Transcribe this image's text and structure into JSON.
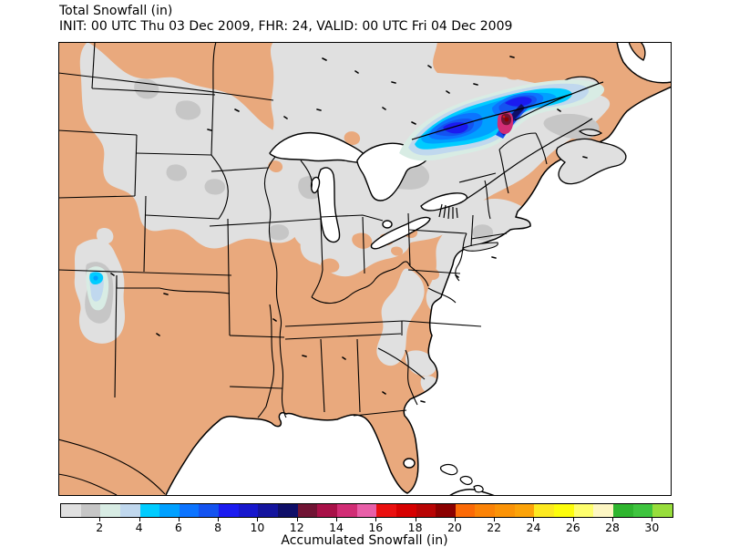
{
  "header": {
    "title": "Total Snowfall (in)",
    "subtitle": "INIT: 00 UTC Thu 03 Dec 2009, FHR: 24, VALID: 00 UTC Fri 04 Dec 2009"
  },
  "colorbar": {
    "label": "Accumulated Snowfall (in)",
    "units": "inches",
    "tick_values": [
      2,
      4,
      6,
      8,
      10,
      12,
      14,
      16,
      18,
      20,
      22,
      24,
      26,
      28,
      30
    ],
    "scale_min": 0,
    "scale_max": 31,
    "segment_colors": [
      "#e0e0e0",
      "#c6c6c6",
      "#d8ece4",
      "#c0d8ee",
      "#00ccff",
      "#00a0ff",
      "#0c74ff",
      "#1453f0",
      "#1b1bf0",
      "#1717cd",
      "#14149e",
      "#0f0f68",
      "#701434",
      "#a81148",
      "#d12d75",
      "#e85fa8",
      "#ea1010",
      "#d60000",
      "#b80404",
      "#8b0000",
      "#fb6a07",
      "#fb8307",
      "#fb9307",
      "#fca309",
      "#fde920",
      "#fdfd0c",
      "#fefe6e",
      "#fdf6c3",
      "#2fb52f",
      "#3fc43f",
      "#97dd3c"
    ]
  },
  "map": {
    "land_color": "#e9a97d",
    "water_color": "#ffffff",
    "frame_color": "#000000",
    "region": "Central and Eastern United States, Great Lakes, Southern Canada, Atlantic Coast",
    "snow_features": [
      {
        "region": "Southern Ontario / Quebec, NE of Lake Huron along the St. Lawrence",
        "peak_value_in": "18-20",
        "description": "elongated heavy-snow band, core 10-16 in with small 18-20 in maximum"
      },
      {
        "region": "Colorado Rockies",
        "peak_value_in": "5-6",
        "description": "small terrain-locked maximum"
      },
      {
        "region": "Northern Plains, Upper Midwest, Appalachians, New England and offshore Atlantic",
        "peak_value_in": "1-2",
        "description": "broad light accumulation under 2 in"
      }
    ]
  },
  "chart_data": {
    "type": "heatmap",
    "title": "Total Snowfall (in)",
    "legend_ticks": [
      2,
      4,
      6,
      8,
      10,
      12,
      14,
      16,
      18,
      20,
      22,
      24,
      26,
      28,
      30
    ],
    "legend_label": "Accumulated Snowfall (in)",
    "value_range_in": [
      0,
      31
    ],
    "maxima": [
      {
        "location": "Ontario/Quebec border near St. Lawrence River",
        "value_in": 19
      },
      {
        "location": "Colorado Rockies",
        "value_in": 6
      }
    ]
  }
}
